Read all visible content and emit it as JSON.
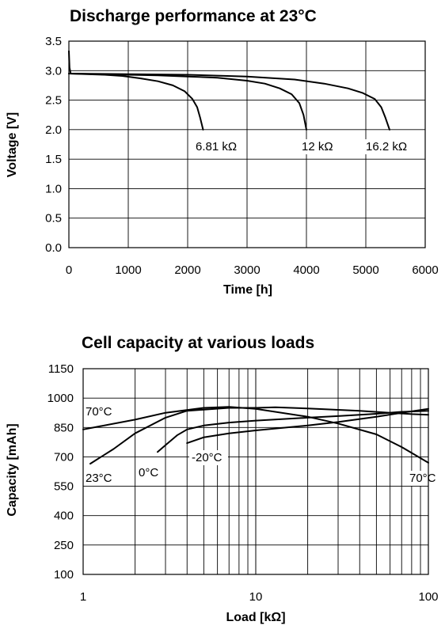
{
  "chart_data": [
    {
      "type": "line",
      "title": "Discharge performance at 23°C",
      "xlabel": "Time [h]",
      "ylabel": "Voltage [V]",
      "xlim": [
        0,
        6000
      ],
      "ylim": [
        0,
        3.5
      ],
      "x_ticks": [
        0,
        1000,
        2000,
        3000,
        4000,
        5000,
        6000
      ],
      "y_ticks": [
        0.0,
        0.5,
        1.0,
        1.5,
        2.0,
        2.5,
        3.0,
        3.5
      ],
      "x_tick_labels": [
        "0",
        "1000",
        "2000",
        "3000",
        "4000",
        "5000",
        "6000"
      ],
      "y_tick_labels": [
        "0.0",
        "0.5",
        "1.0",
        "1.5",
        "2.0",
        "2.5",
        "3.0",
        "3.5"
      ],
      "grid": true,
      "series": [
        {
          "name": "6.81 kΩ",
          "points": [
            [
              0,
              3.33
            ],
            [
              10,
              3.05
            ],
            [
              30,
              2.95
            ],
            [
              300,
              2.94
            ],
            [
              600,
              2.93
            ],
            [
              900,
              2.91
            ],
            [
              1200,
              2.87
            ],
            [
              1500,
              2.82
            ],
            [
              1750,
              2.75
            ],
            [
              1950,
              2.65
            ],
            [
              2080,
              2.52
            ],
            [
              2160,
              2.38
            ],
            [
              2210,
              2.2
            ],
            [
              2260,
              2.0
            ]
          ]
        },
        {
          "name": "12 kΩ",
          "points": [
            [
              0,
              2.95
            ],
            [
              500,
              2.94
            ],
            [
              1000,
              2.93
            ],
            [
              1500,
              2.92
            ],
            [
              2000,
              2.9
            ],
            [
              2500,
              2.88
            ],
            [
              3000,
              2.83
            ],
            [
              3300,
              2.78
            ],
            [
              3550,
              2.7
            ],
            [
              3750,
              2.6
            ],
            [
              3880,
              2.45
            ],
            [
              3950,
              2.25
            ],
            [
              4000,
              2.0
            ]
          ]
        },
        {
          "name": "16.2 kΩ",
          "points": [
            [
              0,
              2.95
            ],
            [
              1000,
              2.94
            ],
            [
              2000,
              2.93
            ],
            [
              3000,
              2.9
            ],
            [
              3800,
              2.85
            ],
            [
              4300,
              2.78
            ],
            [
              4700,
              2.7
            ],
            [
              4950,
              2.62
            ],
            [
              5150,
              2.52
            ],
            [
              5260,
              2.38
            ],
            [
              5330,
              2.2
            ],
            [
              5400,
              2.0
            ]
          ]
        }
      ],
      "annotations": [
        "6.81 kΩ",
        "12 kΩ",
        "16.2 kΩ"
      ]
    },
    {
      "type": "line",
      "title": "Cell capacity at various loads",
      "xlabel": "Load [kΩ]",
      "ylabel": "Capacity [mAh]",
      "xscale": "log",
      "xlim": [
        1,
        100
      ],
      "ylim": [
        100,
        1150
      ],
      "x_ticks": [
        1,
        10,
        100
      ],
      "x_tick_labels": [
        "1",
        "10",
        "100"
      ],
      "y_ticks": [
        100,
        250,
        400,
        550,
        700,
        850,
        1000,
        1150
      ],
      "y_tick_labels": [
        "100",
        "250",
        "400",
        "550",
        "700",
        "850",
        "1000",
        "1150"
      ],
      "grid": true,
      "series": [
        {
          "name": "70°C",
          "points": [
            [
              1,
              840
            ],
            [
              2,
              890
            ],
            [
              3,
              925
            ],
            [
              5,
              950
            ],
            [
              7,
              955
            ],
            [
              10,
              945
            ],
            [
              20,
              905
            ],
            [
              30,
              870
            ],
            [
              50,
              815
            ],
            [
              70,
              750
            ],
            [
              100,
              670
            ]
          ]
        },
        {
          "name": "23°C",
          "points": [
            [
              1.1,
              665
            ],
            [
              1.5,
              740
            ],
            [
              2,
              820
            ],
            [
              3,
              900
            ],
            [
              4,
              935
            ],
            [
              7,
              950
            ],
            [
              10,
              950
            ],
            [
              13,
              953
            ],
            [
              20,
              947
            ],
            [
              40,
              935
            ],
            [
              60,
              925
            ],
            [
              80,
              918
            ],
            [
              100,
              915
            ]
          ]
        },
        {
          "name": "0°C",
          "points": [
            [
              2.7,
              725
            ],
            [
              3,
              760
            ],
            [
              3.5,
              810
            ],
            [
              4,
              840
            ],
            [
              5,
              860
            ],
            [
              7,
              875
            ],
            [
              10,
              885
            ],
            [
              20,
              900
            ],
            [
              30,
              908
            ],
            [
              50,
              920
            ],
            [
              70,
              930
            ],
            [
              100,
              935
            ]
          ]
        },
        {
          "name": "-20°C",
          "points": [
            [
              4,
              770
            ],
            [
              5,
              800
            ],
            [
              7,
              820
            ],
            [
              10,
              835
            ],
            [
              20,
              860
            ],
            [
              30,
              878
            ],
            [
              50,
              905
            ],
            [
              70,
              925
            ],
            [
              100,
              945
            ]
          ]
        }
      ],
      "annotations": [
        "70°C",
        "23°C",
        "0°C",
        "-20°C",
        "70°C"
      ]
    }
  ]
}
